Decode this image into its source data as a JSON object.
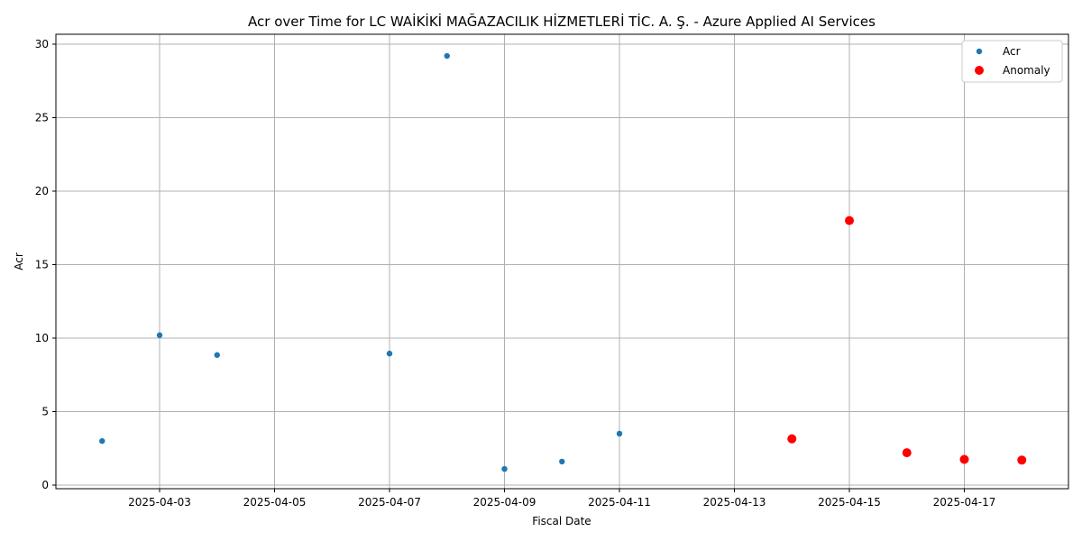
{
  "chart_data": {
    "type": "scatter",
    "title": "Acr over Time for LC WAİKİKİ MAĞAZACILIK HİZMETLERİ TİC. A. Ş. - Azure Applied AI Services",
    "xlabel": "Fiscal Date",
    "ylabel": "Acr",
    "xlim": [
      "2025-04-01",
      "2025-04-19"
    ],
    "ylim": [
      0,
      30
    ],
    "x_ticks": [
      "2025-04-03",
      "2025-04-05",
      "2025-04-07",
      "2025-04-09",
      "2025-04-11",
      "2025-04-13",
      "2025-04-15",
      "2025-04-17"
    ],
    "y_ticks": [
      0,
      5,
      10,
      15,
      20,
      25,
      30
    ],
    "grid": true,
    "legend_position": "top-right",
    "series": [
      {
        "name": "Acr",
        "color": "#1f77b4",
        "marker": "small-circle",
        "points": [
          {
            "x": "2025-04-02",
            "y": 3.0
          },
          {
            "x": "2025-04-03",
            "y": 10.2
          },
          {
            "x": "2025-04-04",
            "y": 8.85
          },
          {
            "x": "2025-04-07",
            "y": 8.95
          },
          {
            "x": "2025-04-08",
            "y": 29.2
          },
          {
            "x": "2025-04-09",
            "y": 1.1
          },
          {
            "x": "2025-04-10",
            "y": 1.6
          },
          {
            "x": "2025-04-11",
            "y": 3.5
          }
        ]
      },
      {
        "name": "Anomaly",
        "color": "#ff0000",
        "marker": "large-circle",
        "points": [
          {
            "x": "2025-04-14",
            "y": 3.15
          },
          {
            "x": "2025-04-15",
            "y": 18.0
          },
          {
            "x": "2025-04-16",
            "y": 2.2
          },
          {
            "x": "2025-04-17",
            "y": 1.75
          },
          {
            "x": "2025-04-18",
            "y": 1.7
          }
        ]
      }
    ]
  }
}
